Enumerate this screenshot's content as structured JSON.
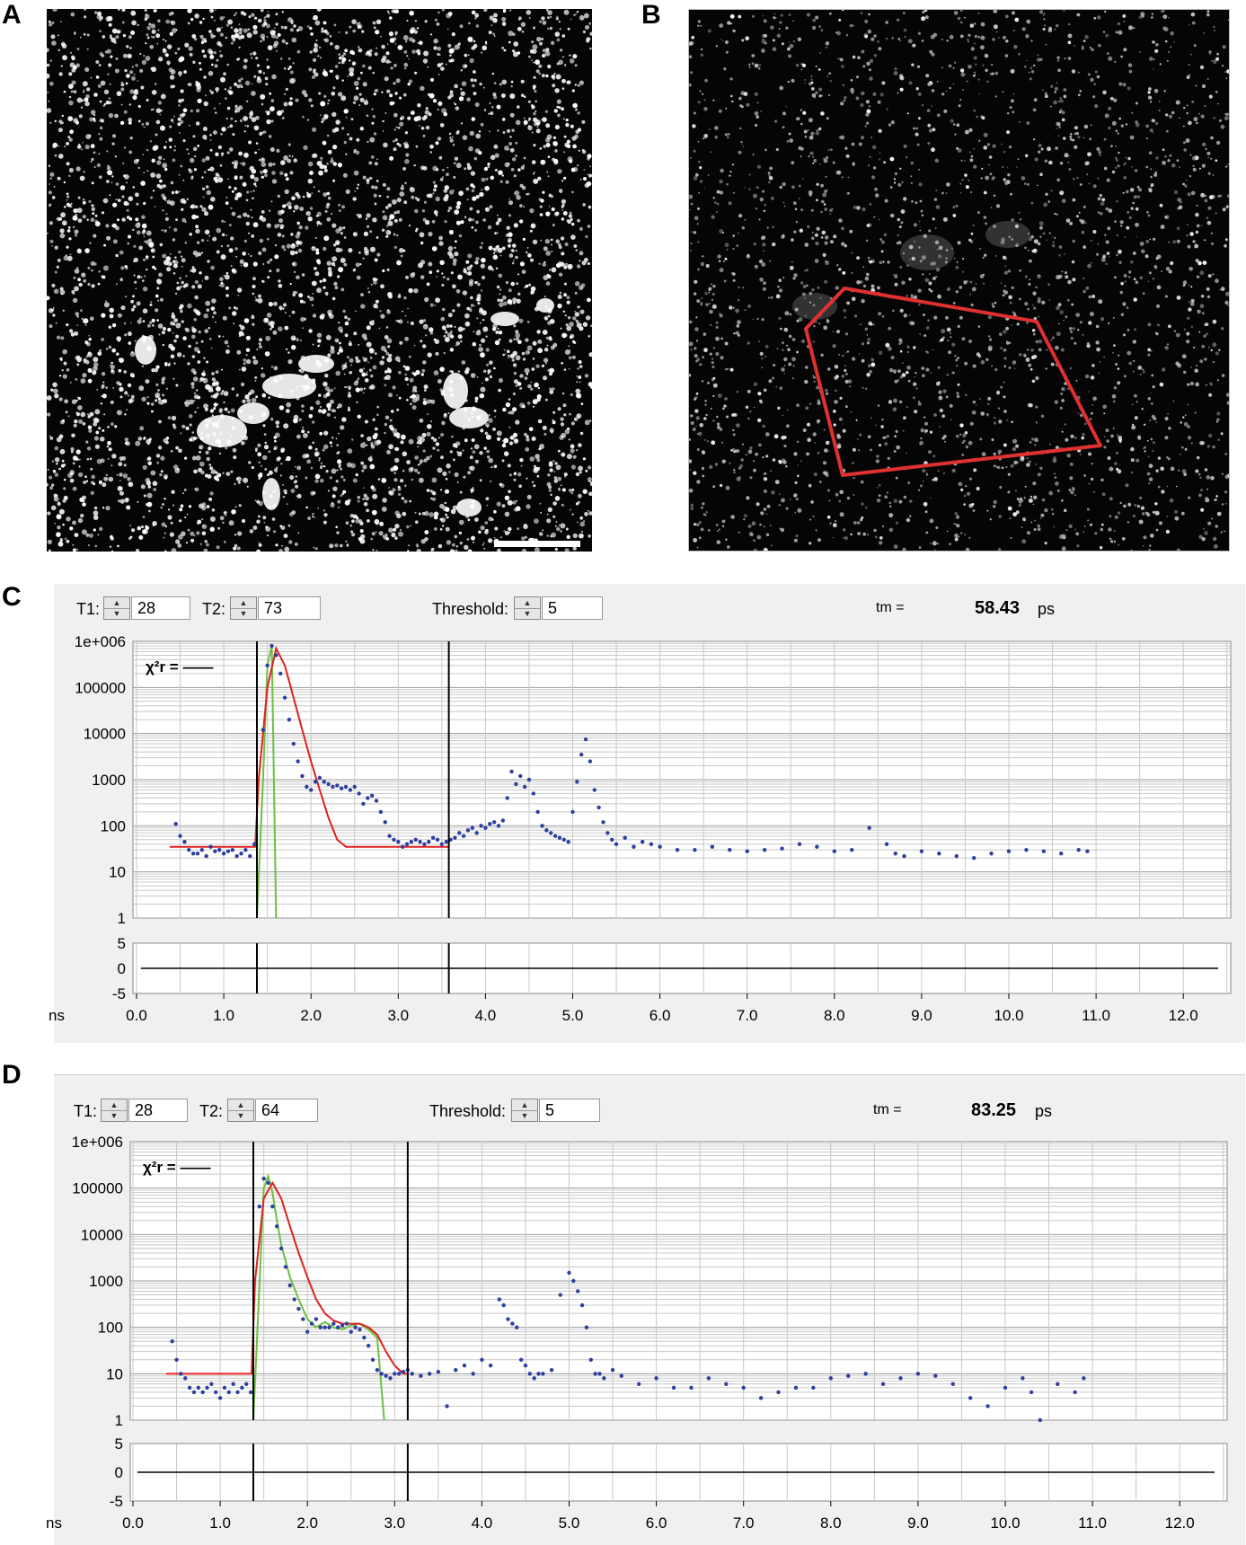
{
  "panels": {
    "a": "A",
    "b": "B",
    "c": "C",
    "d": "D"
  },
  "c": {
    "t1_label": "T1:",
    "t1_value": "28",
    "t2_label": "T2:",
    "t2_value": "73",
    "threshold_label": "Threshold:",
    "threshold_value": "5",
    "tm_label": "tm =",
    "tm_value": "58.43",
    "tm_unit": "ps",
    "chi_label": "χ²r = ——"
  },
  "d": {
    "t1_label": "T1:",
    "t1_value": "28",
    "t2_label": "T2:",
    "t2_value": "64",
    "threshold_label": "Threshold:",
    "threshold_value": "5",
    "tm_label": "tm =",
    "tm_value": "83.25",
    "tm_unit": "ps",
    "chi_label": "χ²r = ——"
  },
  "colors": {
    "data_points": "#2e3f9e",
    "fit_curve": "#e02020",
    "irf_curve": "#6cc040",
    "roi_polygon": "#e03030",
    "panel_bg": "#f0f0f0"
  },
  "chart_data": [
    {
      "type": "scatter",
      "panel": "C",
      "xlabel": "ns",
      "y_scale": "log",
      "ylim": [
        1,
        1000000
      ],
      "xlim": [
        0,
        12.5
      ],
      "y_ticks": [
        "1e+006",
        "100000",
        "10000",
        "1000",
        "100",
        "10",
        "1"
      ],
      "x_ticks": [
        "0.0",
        "1.0",
        "2.0",
        "3.0",
        "4.0",
        "5.0",
        "6.0",
        "7.0",
        "8.0",
        "9.0",
        "10.0",
        "11.0",
        "12.0"
      ],
      "residual_ticks": [
        "5",
        "0",
        "-5"
      ],
      "cursors": [
        1.38,
        3.58
      ],
      "series": [
        {
          "kind": "decay_points",
          "x": [
            0.45,
            0.5,
            0.55,
            0.6,
            0.65,
            0.7,
            0.75,
            0.8,
            0.85,
            0.9,
            0.95,
            1.0,
            1.05,
            1.1,
            1.15,
            1.2,
            1.25,
            1.3,
            1.35,
            1.45,
            1.5,
            1.55,
            1.6,
            1.65,
            1.7,
            1.75,
            1.8,
            1.85,
            1.9,
            1.95,
            2.0,
            2.05,
            2.1,
            2.15,
            2.2,
            2.25,
            2.3,
            2.35,
            2.4,
            2.45,
            2.5,
            2.55,
            2.6,
            2.65,
            2.7,
            2.75,
            2.8,
            2.85,
            2.9,
            2.95,
            3.0,
            3.05,
            3.1,
            3.15,
            3.2,
            3.25,
            3.3,
            3.35,
            3.4,
            3.45,
            3.5,
            3.55,
            3.6,
            3.65,
            3.7,
            3.75,
            3.8,
            3.85,
            3.9,
            3.95,
            4.0,
            4.05,
            4.1,
            4.15,
            4.2,
            4.25,
            4.3,
            4.35,
            4.4,
            4.45,
            4.5,
            4.55,
            4.6,
            4.65,
            4.7,
            4.75,
            4.8,
            4.85,
            4.9,
            4.95,
            5.0,
            5.05,
            5.1,
            5.15,
            5.2,
            5.25,
            5.3,
            5.35,
            5.4,
            5.45,
            5.5,
            5.6,
            5.7,
            5.8,
            5.9,
            6.0,
            6.2,
            6.4,
            6.6,
            6.8,
            7.0,
            7.2,
            7.4,
            7.6,
            7.8,
            8.0,
            8.2,
            8.4,
            8.6,
            8.7,
            8.8,
            9.0,
            9.2,
            9.4,
            9.6,
            9.8,
            10.0,
            10.2,
            10.4,
            10.6,
            10.8,
            10.9
          ],
          "y": [
            110,
            60,
            45,
            30,
            25,
            25,
            30,
            22,
            35,
            28,
            30,
            25,
            28,
            30,
            22,
            25,
            30,
            22,
            40,
            12000,
            300000,
            800000,
            500000,
            200000,
            60000,
            20000,
            6000,
            2500,
            1200,
            700,
            600,
            900,
            1100,
            900,
            800,
            700,
            750,
            650,
            700,
            600,
            700,
            500,
            300,
            400,
            450,
            350,
            200,
            120,
            60,
            50,
            45,
            35,
            40,
            45,
            50,
            45,
            40,
            45,
            55,
            50,
            40,
            45,
            50,
            55,
            70,
            60,
            80,
            90,
            70,
            100,
            90,
            110,
            120,
            100,
            130,
            400,
            1500,
            800,
            1200,
            700,
            1000,
            500,
            200,
            100,
            80,
            70,
            60,
            55,
            50,
            45,
            200,
            900,
            3500,
            7500,
            2500,
            600,
            250,
            120,
            70,
            50,
            40,
            55,
            35,
            45,
            40,
            35,
            30,
            30,
            35,
            30,
            28,
            30,
            32,
            40,
            35,
            28,
            30,
            90,
            40,
            25,
            22,
            28,
            25,
            22,
            20,
            25,
            28,
            30,
            28,
            25,
            30,
            28
          ]
        },
        {
          "kind": "fit",
          "x": [
            0.38,
            1.36,
            1.4,
            1.5,
            1.6,
            1.7,
            1.8,
            1.9,
            2.0,
            2.1,
            2.2,
            2.3,
            2.4,
            3.58
          ],
          "y": [
            35,
            35,
            1000,
            100000,
            700000,
            300000,
            60000,
            12000,
            2500,
            600,
            150,
            50,
            35,
            35
          ]
        },
        {
          "kind": "irf",
          "x": [
            1.38,
            1.45,
            1.5,
            1.55,
            1.6
          ],
          "y": [
            1,
            1000,
            300000,
            800000,
            1
          ]
        }
      ]
    },
    {
      "type": "scatter",
      "panel": "D",
      "xlabel": "ns",
      "y_scale": "log",
      "ylim": [
        1,
        1000000
      ],
      "xlim": [
        0,
        12.5
      ],
      "y_ticks": [
        "1e+006",
        "100000",
        "10000",
        "1000",
        "100",
        "10",
        "1"
      ],
      "x_ticks": [
        "0.0",
        "1.0",
        "2.0",
        "3.0",
        "4.0",
        "5.0",
        "6.0",
        "7.0",
        "8.0",
        "9.0",
        "10.0",
        "11.0",
        "12.0"
      ],
      "residual_ticks": [
        "5",
        "0",
        "-5"
      ],
      "cursors": [
        1.38,
        3.15
      ],
      "series": [
        {
          "kind": "decay_points",
          "x": [
            0.45,
            0.5,
            0.55,
            0.6,
            0.65,
            0.7,
            0.75,
            0.8,
            0.85,
            0.9,
            0.95,
            1.0,
            1.05,
            1.1,
            1.15,
            1.2,
            1.25,
            1.3,
            1.35,
            1.45,
            1.5,
            1.55,
            1.6,
            1.65,
            1.7,
            1.75,
            1.8,
            1.85,
            1.9,
            1.95,
            2.0,
            2.05,
            2.1,
            2.15,
            2.2,
            2.25,
            2.3,
            2.35,
            2.4,
            2.45,
            2.5,
            2.55,
            2.6,
            2.65,
            2.7,
            2.75,
            2.8,
            2.85,
            2.9,
            2.95,
            3.0,
            3.05,
            3.1,
            3.15,
            3.2,
            3.3,
            3.4,
            3.5,
            3.6,
            3.7,
            3.8,
            3.9,
            4.0,
            4.1,
            4.2,
            4.25,
            4.3,
            4.35,
            4.4,
            4.45,
            4.5,
            4.55,
            4.6,
            4.65,
            4.7,
            4.8,
            4.9,
            5.0,
            5.05,
            5.1,
            5.15,
            5.2,
            5.25,
            5.3,
            5.35,
            5.4,
            5.5,
            5.6,
            5.8,
            6.0,
            6.2,
            6.4,
            6.6,
            6.8,
            7.0,
            7.2,
            7.4,
            7.6,
            7.8,
            8.0,
            8.2,
            8.4,
            8.6,
            8.8,
            9.0,
            9.2,
            9.4,
            9.6,
            9.8,
            10.0,
            10.2,
            10.3,
            10.4,
            10.6,
            10.8,
            10.9
          ],
          "y": [
            50,
            20,
            10,
            8,
            5,
            4,
            5,
            4,
            5,
            6,
            4,
            3,
            5,
            4,
            6,
            4,
            5,
            6,
            4,
            40000,
            160000,
            130000,
            40000,
            15000,
            5000,
            2000,
            800,
            400,
            250,
            150,
            80,
            120,
            150,
            100,
            100,
            100,
            120,
            100,
            110,
            120,
            80,
            100,
            90,
            60,
            40,
            20,
            12,
            10,
            9,
            8,
            10,
            10,
            11,
            12,
            10,
            9,
            10,
            11,
            2,
            12,
            15,
            10,
            20,
            15,
            400,
            300,
            150,
            120,
            100,
            20,
            15,
            10,
            8,
            10,
            10,
            12,
            500,
            1500,
            1000,
            600,
            300,
            100,
            20,
            10,
            10,
            8,
            12,
            9,
            6,
            8,
            5,
            5,
            8,
            6,
            5,
            3,
            4,
            5,
            5,
            8,
            9,
            10,
            6,
            8,
            10,
            9,
            6,
            3,
            2,
            5,
            8,
            4,
            1,
            6,
            4,
            8
          ]
        },
        {
          "kind": "fit",
          "x": [
            0.38,
            1.36,
            1.4,
            1.5,
            1.6,
            1.7,
            1.8,
            1.9,
            2.0,
            2.1,
            2.2,
            2.3,
            2.4,
            2.5,
            2.6,
            2.7,
            2.8,
            2.9,
            3.0,
            3.1,
            3.15
          ],
          "y": [
            10,
            10,
            1000,
            60000,
            130000,
            60000,
            15000,
            4000,
            1200,
            400,
            200,
            140,
            120,
            120,
            120,
            100,
            70,
            30,
            15,
            10,
            10
          ]
        },
        {
          "kind": "irf",
          "x": [
            1.38,
            1.45,
            1.5,
            1.55,
            1.6,
            1.65,
            1.7,
            1.8,
            1.9,
            2.0,
            2.1,
            2.2,
            2.3,
            2.4,
            2.5,
            2.6,
            2.7,
            2.8,
            2.88
          ],
          "y": [
            1,
            800,
            100000,
            180000,
            80000,
            20000,
            6000,
            1200,
            400,
            150,
            100,
            130,
            100,
            90,
            110,
            120,
            90,
            60,
            1
          ]
        }
      ]
    }
  ]
}
